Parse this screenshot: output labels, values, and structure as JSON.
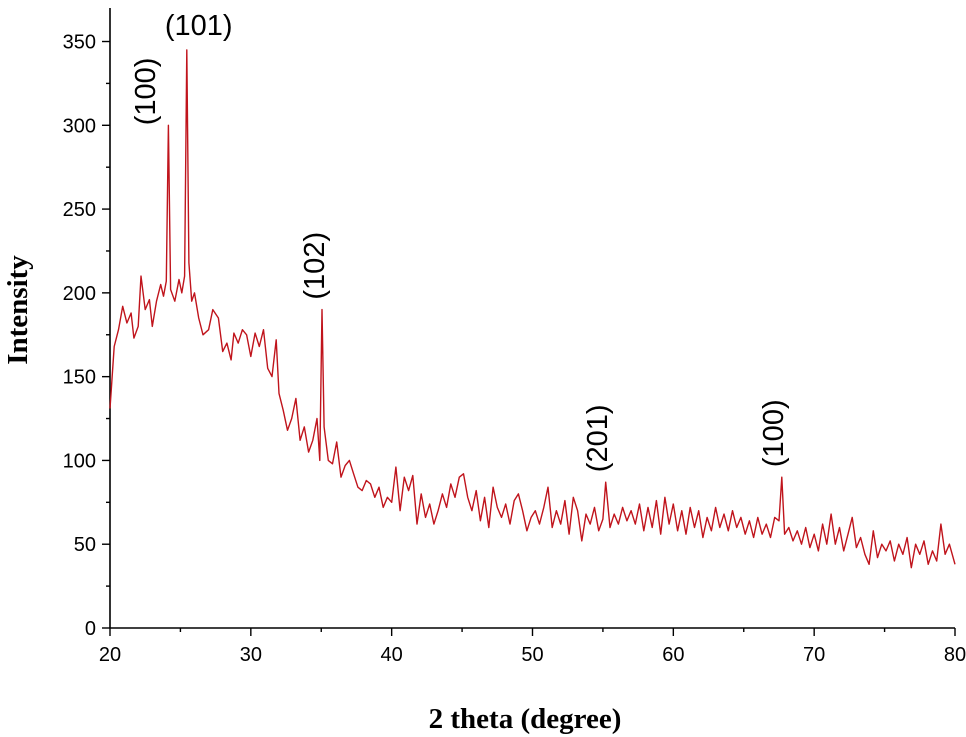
{
  "chart_data": {
    "type": "line",
    "title": "",
    "xlabel": "2 theta (degree)",
    "ylabel": "Intensity",
    "xlim": [
      20,
      80
    ],
    "ylim": [
      0,
      370
    ],
    "x_ticks": [
      20,
      30,
      40,
      50,
      60,
      70,
      80
    ],
    "y_ticks": [
      0,
      50,
      100,
      150,
      200,
      250,
      300,
      350
    ],
    "grid": false,
    "series": [
      {
        "color": "#c0141c",
        "points": [
          [
            20.0,
            131
          ],
          [
            20.3,
            168
          ],
          [
            20.6,
            178
          ],
          [
            20.9,
            192
          ],
          [
            21.2,
            182
          ],
          [
            21.5,
            188
          ],
          [
            21.7,
            173
          ],
          [
            22.0,
            180
          ],
          [
            22.2,
            210
          ],
          [
            22.5,
            190
          ],
          [
            22.8,
            196
          ],
          [
            23.0,
            180
          ],
          [
            23.3,
            195
          ],
          [
            23.6,
            205
          ],
          [
            23.8,
            198
          ],
          [
            24.0,
            207
          ],
          [
            24.15,
            300
          ],
          [
            24.3,
            202
          ],
          [
            24.6,
            195
          ],
          [
            24.9,
            208
          ],
          [
            25.1,
            200
          ],
          [
            25.3,
            210
          ],
          [
            25.45,
            345
          ],
          [
            25.6,
            218
          ],
          [
            25.8,
            195
          ],
          [
            26.0,
            200
          ],
          [
            26.3,
            185
          ],
          [
            26.6,
            175
          ],
          [
            27.0,
            178
          ],
          [
            27.3,
            190
          ],
          [
            27.7,
            185
          ],
          [
            28.0,
            165
          ],
          [
            28.3,
            170
          ],
          [
            28.6,
            160
          ],
          [
            28.8,
            176
          ],
          [
            29.1,
            170
          ],
          [
            29.4,
            178
          ],
          [
            29.7,
            175
          ],
          [
            30.0,
            162
          ],
          [
            30.3,
            176
          ],
          [
            30.6,
            168
          ],
          [
            30.9,
            178
          ],
          [
            31.2,
            155
          ],
          [
            31.5,
            150
          ],
          [
            31.8,
            172
          ],
          [
            32.0,
            140
          ],
          [
            32.3,
            130
          ],
          [
            32.6,
            118
          ],
          [
            32.9,
            125
          ],
          [
            33.2,
            137
          ],
          [
            33.5,
            112
          ],
          [
            33.8,
            120
          ],
          [
            34.1,
            105
          ],
          [
            34.4,
            112
          ],
          [
            34.7,
            125
          ],
          [
            34.9,
            100
          ],
          [
            35.05,
            190
          ],
          [
            35.2,
            120
          ],
          [
            35.5,
            100
          ],
          [
            35.8,
            98
          ],
          [
            36.1,
            111
          ],
          [
            36.4,
            90
          ],
          [
            36.7,
            97
          ],
          [
            37.0,
            100
          ],
          [
            37.3,
            92
          ],
          [
            37.6,
            84
          ],
          [
            37.9,
            82
          ],
          [
            38.2,
            88
          ],
          [
            38.5,
            86
          ],
          [
            38.8,
            78
          ],
          [
            39.1,
            84
          ],
          [
            39.4,
            72
          ],
          [
            39.7,
            78
          ],
          [
            40.0,
            75
          ],
          [
            40.3,
            96
          ],
          [
            40.6,
            70
          ],
          [
            40.9,
            90
          ],
          [
            41.2,
            82
          ],
          [
            41.5,
            91
          ],
          [
            41.8,
            62
          ],
          [
            42.1,
            80
          ],
          [
            42.4,
            66
          ],
          [
            42.7,
            74
          ],
          [
            43.0,
            62
          ],
          [
            43.3,
            70
          ],
          [
            43.6,
            80
          ],
          [
            43.9,
            72
          ],
          [
            44.2,
            86
          ],
          [
            44.5,
            78
          ],
          [
            44.8,
            90
          ],
          [
            45.1,
            92
          ],
          [
            45.4,
            78
          ],
          [
            45.7,
            70
          ],
          [
            46.0,
            82
          ],
          [
            46.3,
            64
          ],
          [
            46.6,
            78
          ],
          [
            46.9,
            60
          ],
          [
            47.2,
            84
          ],
          [
            47.5,
            72
          ],
          [
            47.8,
            66
          ],
          [
            48.1,
            74
          ],
          [
            48.4,
            62
          ],
          [
            48.7,
            76
          ],
          [
            49.0,
            80
          ],
          [
            49.3,
            70
          ],
          [
            49.6,
            58
          ],
          [
            49.9,
            66
          ],
          [
            50.2,
            70
          ],
          [
            50.5,
            62
          ],
          [
            50.8,
            72
          ],
          [
            51.1,
            84
          ],
          [
            51.4,
            60
          ],
          [
            51.7,
            70
          ],
          [
            52.0,
            62
          ],
          [
            52.3,
            76
          ],
          [
            52.6,
            56
          ],
          [
            52.9,
            78
          ],
          [
            53.2,
            70
          ],
          [
            53.5,
            52
          ],
          [
            53.8,
            68
          ],
          [
            54.1,
            62
          ],
          [
            54.4,
            72
          ],
          [
            54.7,
            58
          ],
          [
            55.0,
            65
          ],
          [
            55.2,
            87
          ],
          [
            55.5,
            60
          ],
          [
            55.8,
            68
          ],
          [
            56.1,
            62
          ],
          [
            56.4,
            72
          ],
          [
            56.7,
            64
          ],
          [
            57.0,
            70
          ],
          [
            57.3,
            62
          ],
          [
            57.6,
            74
          ],
          [
            57.9,
            58
          ],
          [
            58.2,
            72
          ],
          [
            58.5,
            60
          ],
          [
            58.8,
            76
          ],
          [
            59.1,
            56
          ],
          [
            59.4,
            78
          ],
          [
            59.7,
            62
          ],
          [
            60.0,
            74
          ],
          [
            60.3,
            58
          ],
          [
            60.6,
            70
          ],
          [
            60.9,
            56
          ],
          [
            61.2,
            72
          ],
          [
            61.5,
            60
          ],
          [
            61.8,
            70
          ],
          [
            62.1,
            54
          ],
          [
            62.4,
            66
          ],
          [
            62.7,
            58
          ],
          [
            63.0,
            72
          ],
          [
            63.3,
            60
          ],
          [
            63.6,
            68
          ],
          [
            63.9,
            58
          ],
          [
            64.2,
            70
          ],
          [
            64.5,
            60
          ],
          [
            64.8,
            66
          ],
          [
            65.1,
            56
          ],
          [
            65.4,
            64
          ],
          [
            65.7,
            54
          ],
          [
            66.0,
            66
          ],
          [
            66.3,
            56
          ],
          [
            66.6,
            62
          ],
          [
            66.9,
            54
          ],
          [
            67.2,
            66
          ],
          [
            67.5,
            64
          ],
          [
            67.7,
            90
          ],
          [
            67.9,
            56
          ],
          [
            68.2,
            60
          ],
          [
            68.5,
            52
          ],
          [
            68.8,
            58
          ],
          [
            69.1,
            50
          ],
          [
            69.4,
            60
          ],
          [
            69.7,
            48
          ],
          [
            70.0,
            56
          ],
          [
            70.3,
            46
          ],
          [
            70.6,
            62
          ],
          [
            70.9,
            50
          ],
          [
            71.2,
            68
          ],
          [
            71.5,
            50
          ],
          [
            71.8,
            60
          ],
          [
            72.1,
            46
          ],
          [
            72.4,
            56
          ],
          [
            72.7,
            66
          ],
          [
            73.0,
            48
          ],
          [
            73.3,
            54
          ],
          [
            73.6,
            44
          ],
          [
            73.9,
            38
          ],
          [
            74.2,
            58
          ],
          [
            74.5,
            42
          ],
          [
            74.8,
            50
          ],
          [
            75.1,
            46
          ],
          [
            75.4,
            52
          ],
          [
            75.7,
            40
          ],
          [
            76.0,
            50
          ],
          [
            76.3,
            44
          ],
          [
            76.6,
            54
          ],
          [
            76.9,
            36
          ],
          [
            77.2,
            50
          ],
          [
            77.5,
            44
          ],
          [
            77.8,
            52
          ],
          [
            78.1,
            38
          ],
          [
            78.4,
            46
          ],
          [
            78.7,
            40
          ],
          [
            79.0,
            62
          ],
          [
            79.3,
            44
          ],
          [
            79.6,
            50
          ],
          [
            80.0,
            38
          ]
        ]
      }
    ],
    "annotations": [
      {
        "text": "(100)",
        "x": 23.2,
        "y": 300,
        "rotated": true
      },
      {
        "text": "(101)",
        "x": 26.3,
        "y": 354,
        "rotated": false
      },
      {
        "text": "(102)",
        "x": 35.2,
        "y": 196,
        "rotated": true
      },
      {
        "text": "(201)",
        "x": 55.3,
        "y": 93,
        "rotated": true
      },
      {
        "text": "(100)",
        "x": 67.8,
        "y": 96,
        "rotated": true
      }
    ]
  }
}
